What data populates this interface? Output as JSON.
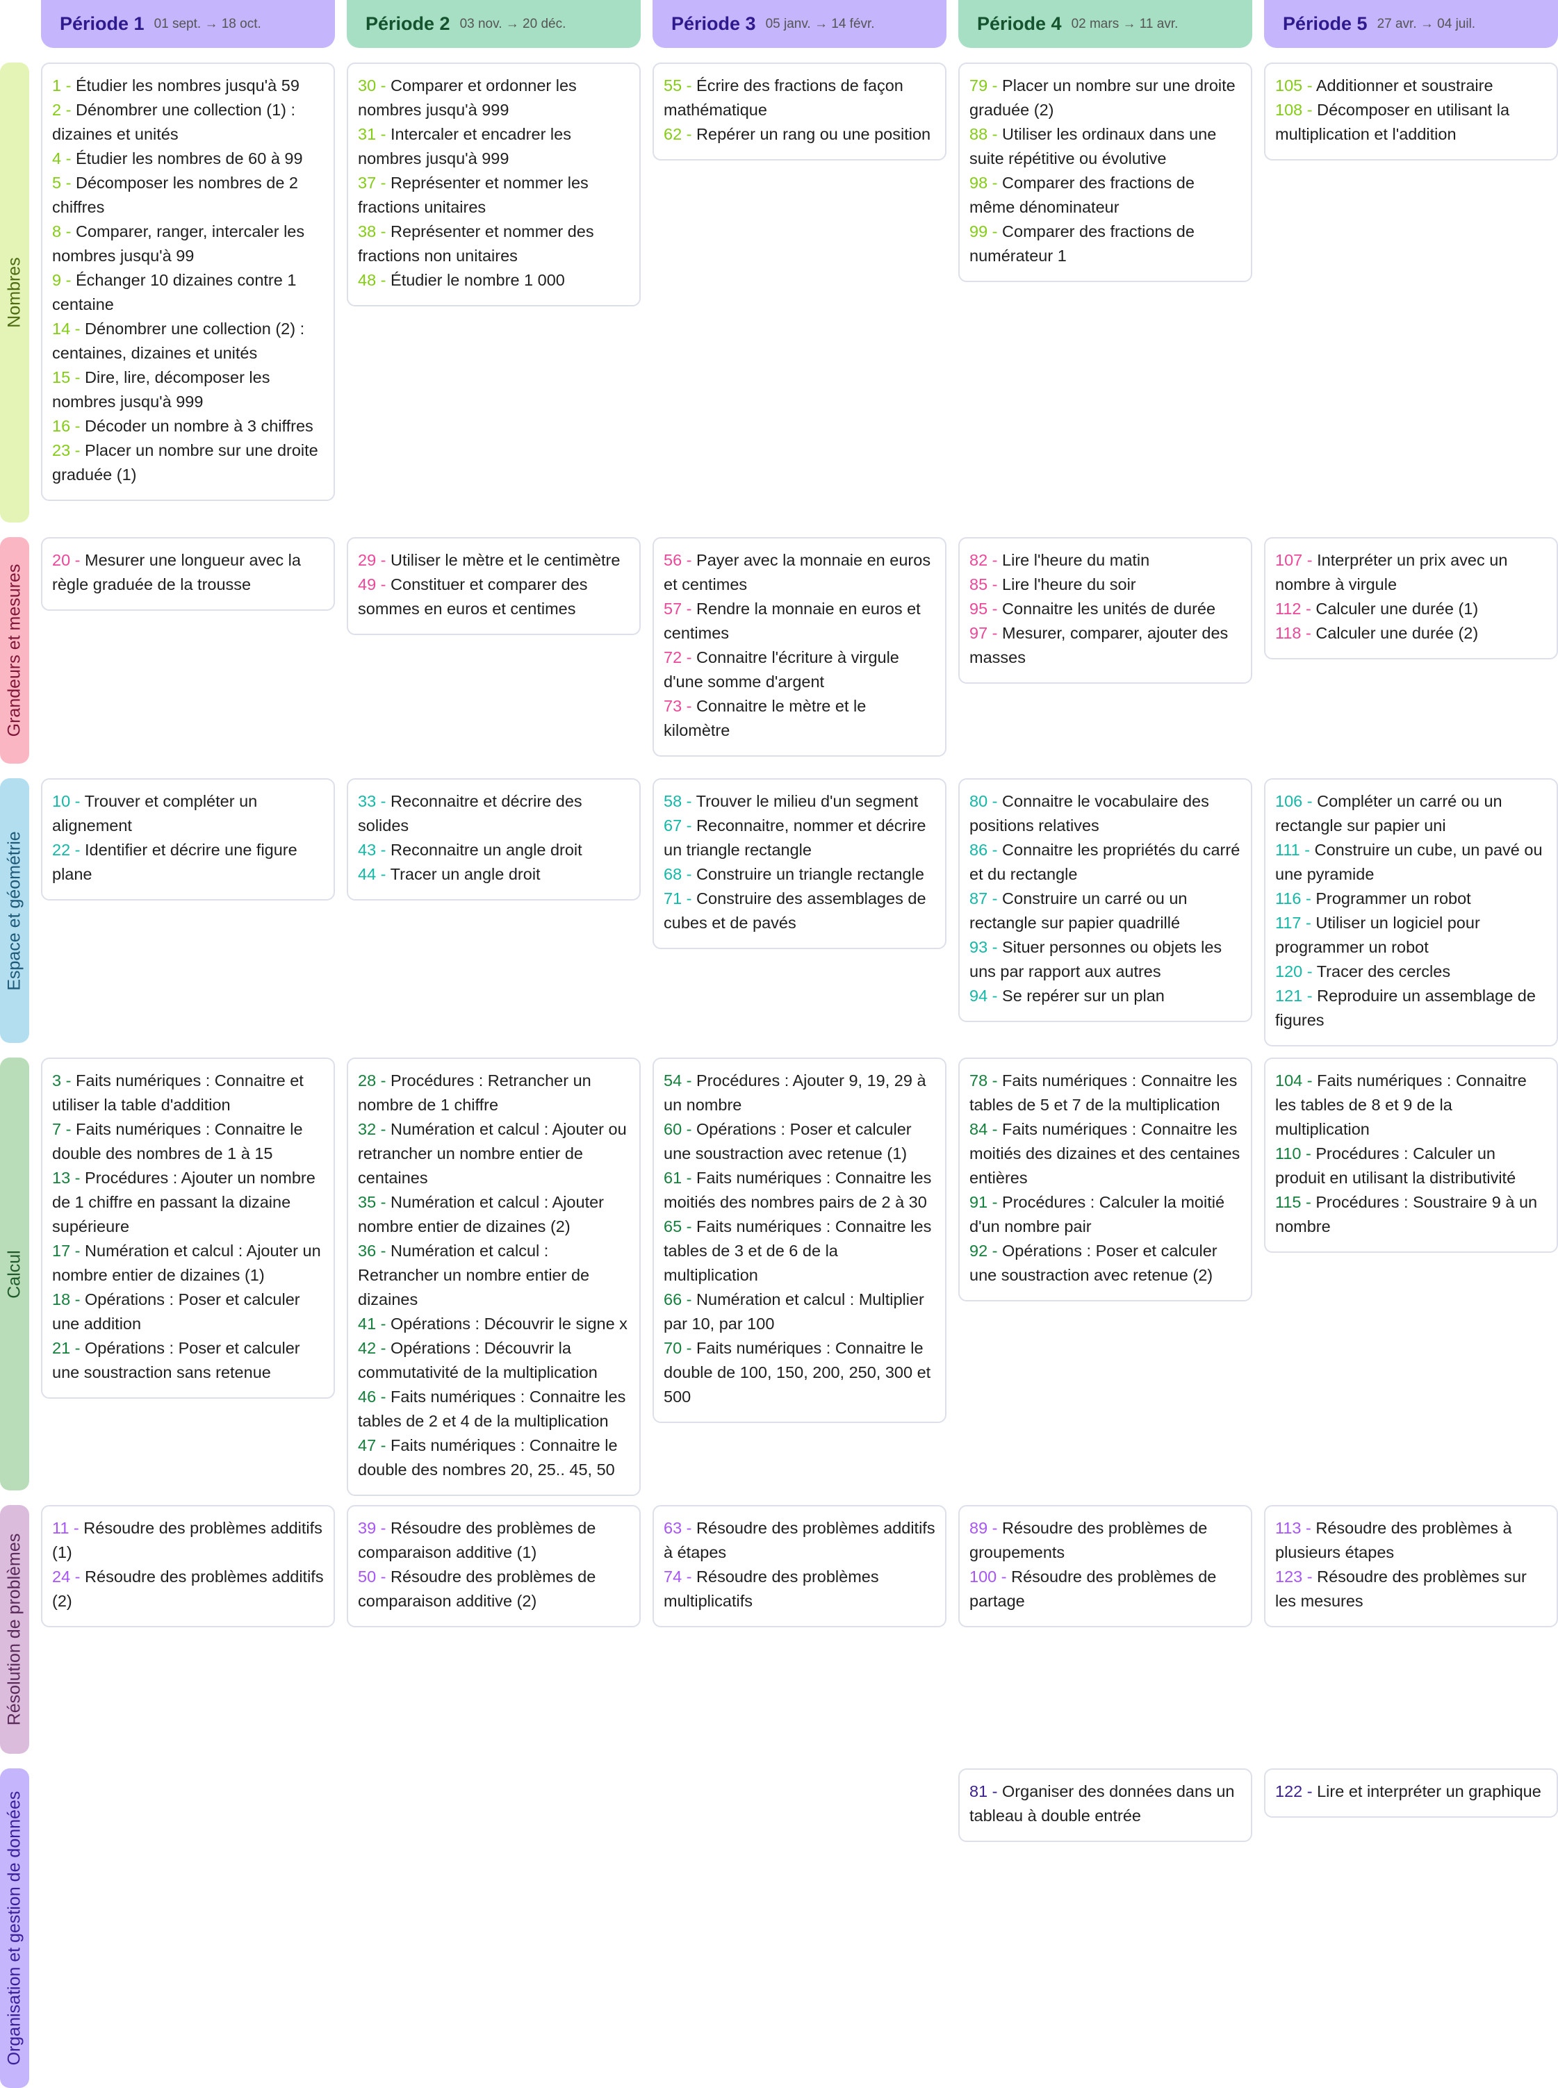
{
  "periods": [
    {
      "title": "Période 1",
      "dates": "01 sept. → 18 oct.",
      "color": "#c4b5fd"
    },
    {
      "title": "Période 2",
      "dates": "03 nov. → 20 déc.",
      "color": "#a7dfc4"
    },
    {
      "title": "Période 3",
      "dates": "05 janv. → 14 févr.",
      "color": "#c4b5fd"
    },
    {
      "title": "Période 4",
      "dates": "02 mars → 11 avr.",
      "color": "#a7dfc4"
    },
    {
      "title": "Période 5",
      "dates": "27 avr. → 04 juil.",
      "color": "#c4b5fd"
    }
  ],
  "domains": [
    {
      "label": "Nombres",
      "bg": "#e4f3b6",
      "fg": "#4d6b12",
      "num_color": "#84cc16",
      "cells": [
        [
          [
            "1",
            "Étudier les nombres jusqu'à 59"
          ],
          [
            "2",
            "Dénombrer une collection (1) : dizaines et unités"
          ],
          [
            "4",
            "Étudier les nombres de 60 à 99"
          ],
          [
            "5",
            "Décomposer les nombres de 2 chiffres"
          ],
          [
            "8",
            "Comparer, ranger, intercaler les nombres jusqu'à 99"
          ],
          [
            "9",
            "Échanger 10 dizaines contre 1 centaine"
          ],
          [
            "14",
            "Dénombrer une collection (2) : centaines, dizaines et unités"
          ],
          [
            "15",
            "Dire, lire, décomposer les nombres jusqu'à 999"
          ],
          [
            "16",
            "Décoder un nombre à 3 chiffres"
          ],
          [
            "23",
            "Placer un nombre sur une droite graduée (1)"
          ]
        ],
        [
          [
            "30",
            "Comparer et ordonner les nombres jusqu'à 999"
          ],
          [
            "31",
            "Intercaler et encadrer les nombres jusqu'à 999"
          ],
          [
            "37",
            "Représenter et nommer les fractions unitaires"
          ],
          [
            "38",
            "Représenter et nommer des fractions non unitaires"
          ],
          [
            "48",
            "Étudier le nombre 1 000"
          ]
        ],
        [
          [
            "55",
            "Écrire des fractions de façon mathématique"
          ],
          [
            "62",
            "Repérer un rang ou une position"
          ]
        ],
        [
          [
            "79",
            "Placer un nombre sur une droite graduée (2)"
          ],
          [
            "88",
            "Utiliser les ordinaux dans une suite répétitive ou évolutive"
          ],
          [
            "98",
            "Comparer des fractions de même dénominateur"
          ],
          [
            "99",
            "Comparer des fractions de numérateur 1"
          ]
        ],
        [
          [
            "105",
            "Additionner et soustraire"
          ],
          [
            "108",
            "Décomposer en utilisant la multiplication et l'addition"
          ]
        ]
      ]
    },
    {
      "label": "Grandeurs et mesures",
      "bg": "#fbb6c3",
      "fg": "#7f1537",
      "num_color": "#ec4899",
      "cells": [
        [
          [
            "20",
            "Mesurer une longueur avec la règle graduée de la trousse"
          ]
        ],
        [
          [
            "29",
            "Utiliser le mètre et le centimètre"
          ],
          [
            "49",
            "Constituer et comparer des sommes en euros et centimes"
          ]
        ],
        [
          [
            "56",
            "Payer avec la monnaie en euros et centimes"
          ],
          [
            "57",
            "Rendre la monnaie en euros et centimes"
          ],
          [
            "72",
            "Connaitre l'écriture à virgule d'une somme d'argent"
          ],
          [
            "73",
            "Connaitre le mètre et le kilomètre"
          ]
        ],
        [
          [
            "82",
            "Lire l'heure du matin"
          ],
          [
            "85",
            "Lire l'heure du soir"
          ],
          [
            "95",
            "Connaitre les unités de durée"
          ],
          [
            "97",
            "Mesurer, comparer, ajouter des masses"
          ]
        ],
        [
          [
            "107",
            "Interpréter un prix avec un nombre à virgule"
          ],
          [
            "112",
            "Calculer une durée (1)"
          ],
          [
            "118",
            "Calculer une durée (2)"
          ]
        ]
      ]
    },
    {
      "label": "Espace et géométrie",
      "bg": "#b3def0",
      "fg": "#1e5a78",
      "num_color": "#14b8a6",
      "cells": [
        [
          [
            "10",
            "Trouver et compléter un alignement"
          ],
          [
            "22",
            "Identifier et décrire une figure plane"
          ]
        ],
        [
          [
            "33",
            "Reconnaitre et décrire des solides"
          ],
          [
            "43",
            "Reconnaitre un angle droit"
          ],
          [
            "44",
            "Tracer un angle droit"
          ]
        ],
        [
          [
            "58",
            "Trouver le milieu d'un segment"
          ],
          [
            "67",
            "Reconnaitre, nommer et décrire un triangle rectangle"
          ],
          [
            "68",
            "Construire un triangle rectangle"
          ],
          [
            "71",
            "Construire des assemblages de cubes et de pavés"
          ]
        ],
        [
          [
            "80",
            "Connaitre le vocabulaire des positions relatives"
          ],
          [
            "86",
            "Connaitre les propriétés du carré et du rectangle"
          ],
          [
            "87",
            "Construire un carré ou un rectangle sur papier quadrillé"
          ],
          [
            "93",
            "Situer personnes ou objets les uns par rapport aux autres"
          ],
          [
            "94",
            "Se repérer sur un plan"
          ]
        ],
        [
          [
            "106",
            "Compléter un carré ou un rectangle sur papier uni"
          ],
          [
            "111",
            "Construire un cube, un pavé ou une pyramide"
          ],
          [
            "116",
            "Programmer un robot"
          ],
          [
            "117",
            "Utiliser un logiciel pour programmer un robot"
          ],
          [
            "120",
            "Tracer des cercles"
          ],
          [
            "121",
            "Reproduire un assemblage de figures"
          ]
        ]
      ]
    },
    {
      "label": "Calcul",
      "bg": "#b9dcb9",
      "fg": "#1f5a2a",
      "num_color": "#15803d",
      "cells": [
        [
          [
            "3",
            "Faits numériques : Connaitre et utiliser la table d'addition"
          ],
          [
            "7",
            "Faits numériques : Connaitre le double des nombres de 1 à 15"
          ],
          [
            "13",
            "Procédures : Ajouter un nombre de 1 chiffre en passant la dizaine supérieure"
          ],
          [
            "17",
            "Numération et calcul : Ajouter un nombre entier de dizaines (1)"
          ],
          [
            "18",
            "Opérations : Poser et calculer une addition"
          ],
          [
            "21",
            "Opérations : Poser et calculer une soustraction sans retenue"
          ]
        ],
        [
          [
            "28",
            "Procédures : Retrancher un nombre de 1 chiffre"
          ],
          [
            "32",
            "Numération et calcul : Ajouter ou retrancher un nombre entier de centaines"
          ],
          [
            "35",
            "Numération et calcul : Ajouter nombre entier de dizaines (2)"
          ],
          [
            "36",
            "Numération et calcul : Retrancher un nombre entier de dizaines"
          ],
          [
            "41",
            "Opérations : Découvrir le signe x"
          ],
          [
            "42",
            "Opérations : Découvrir la commutativité de la multiplication"
          ],
          [
            "46",
            "Faits numériques : Connaitre les tables de 2 et 4 de la multiplication"
          ],
          [
            "47",
            "Faits numériques : Connaitre le double des nombres 20, 25.. 45, 50"
          ]
        ],
        [
          [
            "54",
            "Procédures : Ajouter 9, 19, 29 à un nombre"
          ],
          [
            "60",
            "Opérations : Poser et calculer une soustraction avec retenue (1)"
          ],
          [
            "61",
            "Faits numériques : Connaitre les moitiés des nombres pairs de 2 à 30"
          ],
          [
            "65",
            "Faits numériques : Connaitre les tables de 3 et de 6 de la multiplication"
          ],
          [
            "66",
            "Numération et calcul : Multiplier par 10, par 100"
          ],
          [
            "70",
            "Faits numériques : Connaitre le double de 100, 150, 200, 250, 300 et 500"
          ]
        ],
        [
          [
            "78",
            "Faits numériques : Connaitre les tables de 5 et 7 de la multiplication"
          ],
          [
            "84",
            "Faits numériques : Connaitre les moitiés des dizaines et des centaines entières"
          ],
          [
            "91",
            "Procédures : Calculer la moitié d'un nombre pair"
          ],
          [
            "92",
            "Opérations : Poser et calculer une soustraction avec retenue (2)"
          ]
        ],
        [
          [
            "104",
            "Faits numériques : Connaitre les tables de 8 et 9 de la multiplication"
          ],
          [
            "110",
            "Procédures : Calculer un produit en utilisant la distributivité"
          ],
          [
            "115",
            "Procédures : Soustraire 9 à un nombre"
          ]
        ]
      ]
    },
    {
      "label": "Résolution de problèmes",
      "bg": "#dcbcdc",
      "fg": "#5a2a5a",
      "num_color": "#a855f7",
      "cells": [
        [
          [
            "11",
            "Résoudre des problèmes additifs (1)"
          ],
          [
            "24",
            "Résoudre des problèmes additifs (2)"
          ]
        ],
        [
          [
            "39",
            "Résoudre des problèmes de comparaison additive (1)"
          ],
          [
            "50",
            "Résoudre des problèmes de comparaison additive (2)"
          ]
        ],
        [
          [
            "63",
            "Résoudre des problèmes additifs à étapes"
          ],
          [
            "74",
            "Résoudre des problèmes multiplicatifs"
          ]
        ],
        [
          [
            "89",
            "Résoudre des problèmes de groupements"
          ],
          [
            "100",
            "Résoudre des problèmes de partage"
          ]
        ],
        [
          [
            "113",
            "Résoudre des problèmes à plusieurs étapes"
          ],
          [
            "123",
            "Résoudre des problèmes sur les mesures"
          ]
        ]
      ]
    },
    {
      "label": "Organisation et gestion de données",
      "bg": "#c4b5fd",
      "fg": "#3b1f9a",
      "num_color": "#3b1f8c",
      "cells": [
        [],
        [],
        [],
        [
          [
            "81",
            "Organiser des données dans un tableau à double entrée"
          ]
        ],
        [
          [
            "122",
            "Lire et interpréter un graphique"
          ]
        ]
      ]
    }
  ]
}
